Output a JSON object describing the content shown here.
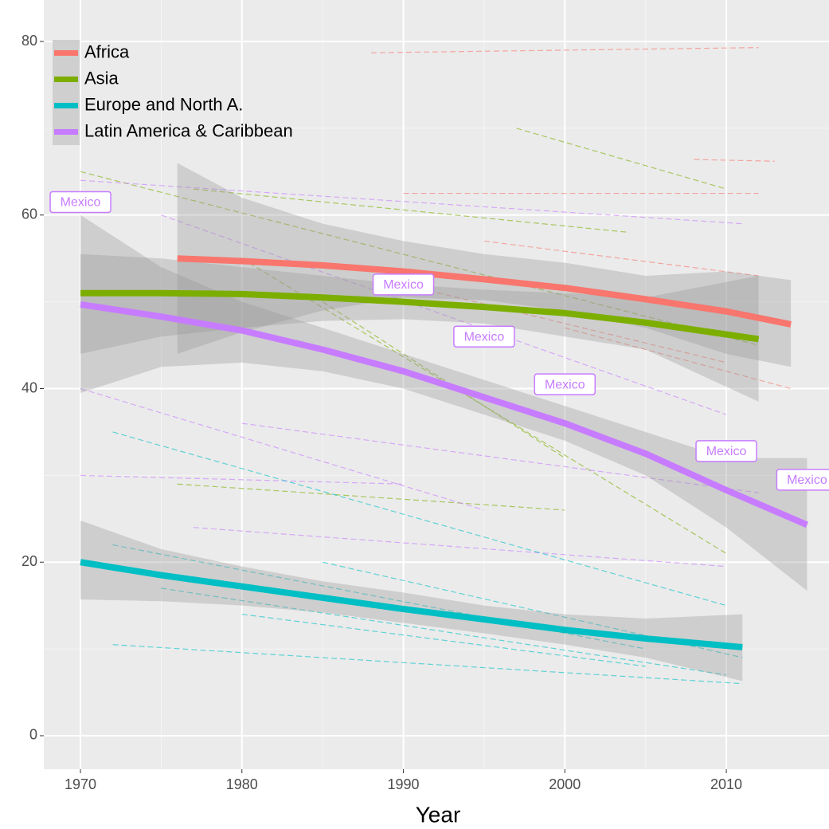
{
  "chart_data": {
    "type": "line",
    "x_label": "Year",
    "xlim": [
      1967.73,
      2016.36
    ],
    "ylim": [
      -3.86,
      84.78
    ],
    "xticks": [
      1970,
      1980,
      1990,
      2000,
      2010
    ],
    "yticks": [
      0,
      20,
      40,
      60,
      80
    ],
    "grid": true,
    "legend": "top-left",
    "series": [
      {
        "name": "Africa",
        "color": "#F8766D",
        "x": [
          1976,
          1980,
          1985,
          1990,
          1995,
          2000,
          2005,
          2010,
          2014
        ],
        "values": [
          55,
          54.7,
          54.2,
          53.5,
          52.6,
          51.6,
          50.3,
          48.9,
          47.4
        ],
        "lower": [
          44,
          46.5,
          49,
          50.5,
          50.2,
          49,
          47,
          44,
          42.5
        ],
        "upper": [
          66,
          62,
          59,
          57,
          55.5,
          54.5,
          53,
          53.5,
          52.5
        ]
      },
      {
        "name": "Asia",
        "color": "#7CAE00",
        "x": [
          1970,
          1975,
          1980,
          1985,
          1990,
          1995,
          2000,
          2005,
          2012
        ],
        "values": [
          51,
          51,
          50.9,
          50.5,
          50,
          49.4,
          48.7,
          47.6,
          45.7
        ],
        "lower": [
          44,
          46,
          47,
          47.8,
          48,
          47.5,
          46,
          44.5,
          38.5
        ],
        "upper": [
          55.5,
          55,
          54,
          53,
          52,
          51.4,
          51,
          50.5,
          53
        ]
      },
      {
        "name": "Europe and North A.",
        "color": "#00BFC4",
        "x": [
          1970,
          1975,
          1980,
          1985,
          1990,
          1995,
          2000,
          2005,
          2011
        ],
        "values": [
          20,
          18.5,
          17.2,
          15.9,
          14.6,
          13.4,
          12.2,
          11.2,
          10.2
        ],
        "lower": [
          15.7,
          15.5,
          15,
          14.2,
          13,
          11.8,
          10.5,
          9,
          6.3
        ],
        "upper": [
          24.8,
          21.5,
          19.5,
          17.8,
          16.5,
          15,
          14,
          13.5,
          14
        ]
      },
      {
        "name": "Latin America & Caribbean",
        "color": "#C77CFF",
        "x": [
          1970,
          1975,
          1980,
          1985,
          1990,
          1995,
          2000,
          2005,
          2010,
          2015
        ],
        "values": [
          49.7,
          48.3,
          46.7,
          44.5,
          42,
          39,
          36,
          32.5,
          28.3,
          24.3
        ],
        "lower": [
          39.5,
          42.5,
          43,
          42,
          40,
          37,
          34,
          30,
          24,
          16.7
        ],
        "upper": [
          60,
          54,
          50,
          47,
          44,
          41,
          38,
          35,
          32,
          32
        ]
      }
    ],
    "country_lines": [
      {
        "color": "#F8766D",
        "x": [
          1988,
          2012
        ],
        "values": [
          78.7,
          79.3
        ]
      },
      {
        "color": "#F8766D",
        "x": [
          2008,
          2013
        ],
        "values": [
          66.4,
          66.2
        ]
      },
      {
        "color": "#F8766D",
        "x": [
          1990,
          2012
        ],
        "values": [
          62.5,
          62.5
        ]
      },
      {
        "color": "#F8766D",
        "x": [
          1995,
          2012
        ],
        "values": [
          57,
          53
        ]
      },
      {
        "color": "#F8766D",
        "x": [
          2000,
          2014
        ],
        "values": [
          47,
          40
        ]
      },
      {
        "color": "#F8766D",
        "x": [
          1990,
          2010
        ],
        "values": [
          52,
          43
        ]
      },
      {
        "color": "#7CAE00",
        "x": [
          1970,
          2012
        ],
        "values": [
          65,
          45
        ]
      },
      {
        "color": "#7CAE00",
        "x": [
          1977,
          2004
        ],
        "values": [
          63,
          58
        ]
      },
      {
        "color": "#7CAE00",
        "x": [
          1997,
          2010
        ],
        "values": [
          70,
          63
        ]
      },
      {
        "color": "#7CAE00",
        "x": [
          1980,
          2010
        ],
        "values": [
          55,
          21
        ]
      },
      {
        "color": "#7CAE00",
        "x": [
          1976,
          2000
        ],
        "values": [
          29,
          26
        ]
      },
      {
        "color": "#7CAE00",
        "x": [
          1985,
          2000
        ],
        "values": [
          50,
          32
        ]
      },
      {
        "color": "#C77CFF",
        "x": [
          1970,
          2011
        ],
        "values": [
          64,
          59
        ]
      },
      {
        "color": "#C77CFF",
        "x": [
          1970,
          1990
        ],
        "values": [
          30,
          29
        ]
      },
      {
        "color": "#C77CFF",
        "x": [
          1975,
          2010
        ],
        "values": [
          60,
          37
        ]
      },
      {
        "color": "#C77CFF",
        "x": [
          1970,
          1995
        ],
        "values": [
          40,
          26
        ]
      },
      {
        "color": "#C77CFF",
        "x": [
          1977,
          2010
        ],
        "values": [
          24,
          19.5
        ]
      },
      {
        "color": "#C77CFF",
        "x": [
          1980,
          2012
        ],
        "values": [
          36,
          28
        ]
      },
      {
        "color": "#00BFC4",
        "x": [
          1972,
          2010
        ],
        "values": [
          35,
          15
        ]
      },
      {
        "color": "#00BFC4",
        "x": [
          1972,
          2011
        ],
        "values": [
          10.5,
          6
        ]
      },
      {
        "color": "#00BFC4",
        "x": [
          1975,
          2010
        ],
        "values": [
          17,
          7
        ]
      },
      {
        "color": "#00BFC4",
        "x": [
          1972,
          2005
        ],
        "values": [
          22,
          10
        ]
      },
      {
        "color": "#00BFC4",
        "x": [
          1985,
          2011
        ],
        "values": [
          20,
          9
        ]
      },
      {
        "color": "#00BFC4",
        "x": [
          1980,
          2005
        ],
        "values": [
          14,
          8
        ]
      }
    ],
    "annotations": [
      {
        "x": 1970,
        "y": 61.5,
        "text": "Mexico"
      },
      {
        "x": 1990,
        "y": 52,
        "text": "Mexico"
      },
      {
        "x": 1995,
        "y": 46,
        "text": "Mexico"
      },
      {
        "x": 2000,
        "y": 40.5,
        "text": "Mexico"
      },
      {
        "x": 2010,
        "y": 32.8,
        "text": "Mexico"
      },
      {
        "x": 2015,
        "y": 29.5,
        "text": "Mexico"
      }
    ],
    "annotation_color": "#C77CFF"
  }
}
